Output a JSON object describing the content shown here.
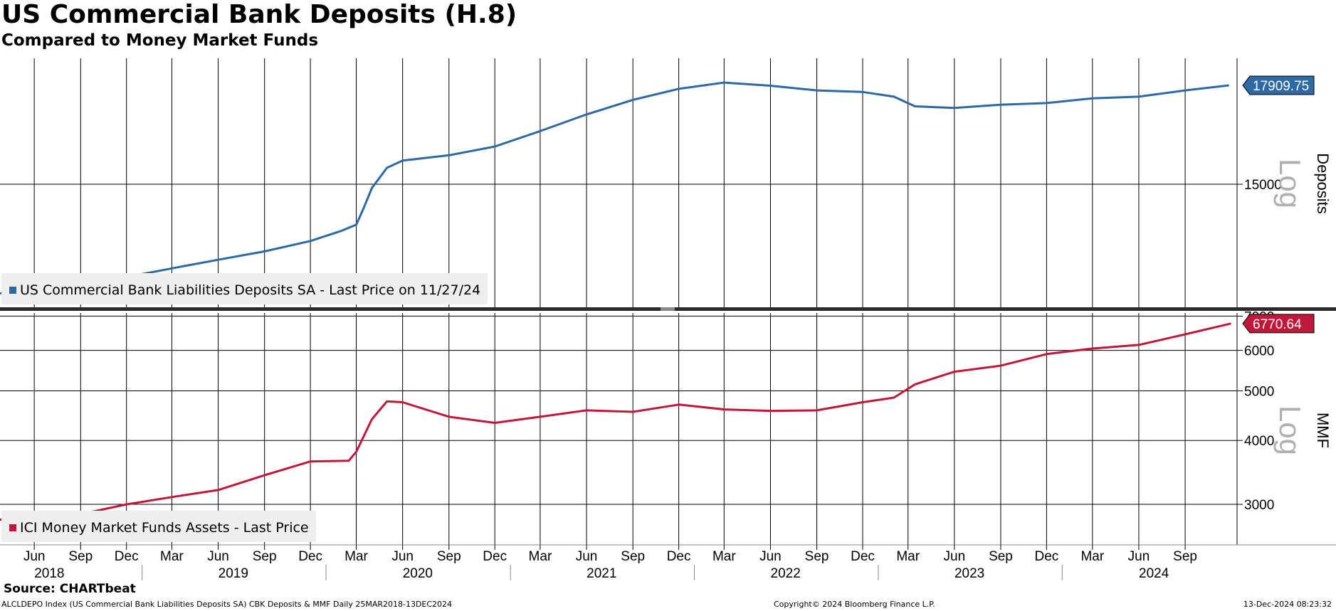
{
  "header": {
    "title": "US Commercial Bank Deposits (H.8)",
    "subtitle": "Compared to Money Market Funds"
  },
  "footer": {
    "source": "Source: CHARTbeat",
    "description": "ALCLDEPO Index (US Commercial Bank Liabilities Deposits SA) CBK Deposits & MMF  Daily 25MAR2018-13DEC2024",
    "copyright": "Copyright© 2024 Bloomberg Finance L.P.",
    "timestamp": "13-Dec-2024 08:23:32"
  },
  "colors": {
    "deposits": "#2d6aa3",
    "mmf": "#c0183a",
    "grid": "#000000",
    "legend_bg": "#eeeeee",
    "log_text": "#b0b0b0"
  },
  "chart_data": [
    {
      "type": "line",
      "panel": "top",
      "scale": "log",
      "ylabel": "Deposits",
      "scale_label": "Log",
      "ylim": [
        12000,
        18800
      ],
      "yticks": [
        15000
      ],
      "grid": true,
      "legend_position": "bottom-left",
      "last_value_label": "17909.75",
      "series": [
        {
          "name": "US Commercial Bank Liabilities Deposits SA - Last Price on 11/27/24",
          "color": "#2d6aa3",
          "points": [
            [
              "2018-03-25",
              12330
            ],
            [
              "2018-06-01",
              12450
            ],
            [
              "2018-09-01",
              12550
            ],
            [
              "2018-12-01",
              12700
            ],
            [
              "2019-03-01",
              12900
            ],
            [
              "2019-06-01",
              13100
            ],
            [
              "2019-09-01",
              13300
            ],
            [
              "2019-12-01",
              13550
            ],
            [
              "2020-02-01",
              13800
            ],
            [
              "2020-03-01",
              13950
            ],
            [
              "2020-03-15",
              14350
            ],
            [
              "2020-04-01",
              14900
            ],
            [
              "2020-05-01",
              15450
            ],
            [
              "2020-06-01",
              15650
            ],
            [
              "2020-09-01",
              15800
            ],
            [
              "2020-12-01",
              16050
            ],
            [
              "2021-03-01",
              16500
            ],
            [
              "2021-06-01",
              17000
            ],
            [
              "2021-09-01",
              17450
            ],
            [
              "2021-12-01",
              17800
            ],
            [
              "2022-03-01",
              18000
            ],
            [
              "2022-06-01",
              17900
            ],
            [
              "2022-09-01",
              17750
            ],
            [
              "2022-12-01",
              17700
            ],
            [
              "2023-02-01",
              17550
            ],
            [
              "2023-03-15",
              17250
            ],
            [
              "2023-06-01",
              17200
            ],
            [
              "2023-09-01",
              17300
            ],
            [
              "2023-12-01",
              17350
            ],
            [
              "2024-03-01",
              17500
            ],
            [
              "2024-06-01",
              17550
            ],
            [
              "2024-09-01",
              17750
            ],
            [
              "2024-11-27",
              17909.75
            ]
          ]
        }
      ]
    },
    {
      "type": "line",
      "panel": "bottom",
      "scale": "log",
      "ylabel": "MMF",
      "scale_label": "Log",
      "ylim": [
        2500,
        7100
      ],
      "yticks": [
        3000,
        4000,
        5000,
        6000,
        7000
      ],
      "grid": true,
      "legend_position": "bottom-left",
      "last_value_label": "6770.64",
      "series": [
        {
          "name": "ICI Money Market Funds Assets - Last Price",
          "color": "#c0183a",
          "points": [
            [
              "2018-03-25",
              2800
            ],
            [
              "2018-06-01",
              2820
            ],
            [
              "2018-09-01",
              2870
            ],
            [
              "2018-12-01",
              3000
            ],
            [
              "2019-03-01",
              3100
            ],
            [
              "2019-06-01",
              3200
            ],
            [
              "2019-09-01",
              3420
            ],
            [
              "2019-12-01",
              3640
            ],
            [
              "2020-02-15",
              3650
            ],
            [
              "2020-03-01",
              3800
            ],
            [
              "2020-04-01",
              4400
            ],
            [
              "2020-05-01",
              4770
            ],
            [
              "2020-06-01",
              4750
            ],
            [
              "2020-09-01",
              4450
            ],
            [
              "2020-12-01",
              4330
            ],
            [
              "2021-03-01",
              4450
            ],
            [
              "2021-06-01",
              4580
            ],
            [
              "2021-09-01",
              4550
            ],
            [
              "2021-12-01",
              4700
            ],
            [
              "2022-03-01",
              4600
            ],
            [
              "2022-06-01",
              4570
            ],
            [
              "2022-09-01",
              4580
            ],
            [
              "2022-12-01",
              4750
            ],
            [
              "2023-02-01",
              4850
            ],
            [
              "2023-03-15",
              5150
            ],
            [
              "2023-06-01",
              5450
            ],
            [
              "2023-09-01",
              5600
            ],
            [
              "2023-12-01",
              5900
            ],
            [
              "2024-03-01",
              6050
            ],
            [
              "2024-06-01",
              6150
            ],
            [
              "2024-09-01",
              6450
            ],
            [
              "2024-12-01",
              6770.64
            ]
          ]
        }
      ]
    }
  ],
  "x_axis": {
    "range": [
      "2018-03-25",
      "2024-12-13"
    ],
    "month_ticks": [
      {
        "label": "Jun",
        "date": "2018-06-01"
      },
      {
        "label": "Sep",
        "date": "2018-09-01"
      },
      {
        "label": "Dec",
        "date": "2018-12-01"
      },
      {
        "label": "Mar",
        "date": "2019-03-01"
      },
      {
        "label": "Jun",
        "date": "2019-06-01"
      },
      {
        "label": "Sep",
        "date": "2019-09-01"
      },
      {
        "label": "Dec",
        "date": "2019-12-01"
      },
      {
        "label": "Mar",
        "date": "2020-03-01"
      },
      {
        "label": "Jun",
        "date": "2020-06-01"
      },
      {
        "label": "Sep",
        "date": "2020-09-01"
      },
      {
        "label": "Dec",
        "date": "2020-12-01"
      },
      {
        "label": "Mar",
        "date": "2021-03-01"
      },
      {
        "label": "Jun",
        "date": "2021-06-01"
      },
      {
        "label": "Sep",
        "date": "2021-09-01"
      },
      {
        "label": "Dec",
        "date": "2021-12-01"
      },
      {
        "label": "Mar",
        "date": "2022-03-01"
      },
      {
        "label": "Jun",
        "date": "2022-06-01"
      },
      {
        "label": "Sep",
        "date": "2022-09-01"
      },
      {
        "label": "Dec",
        "date": "2022-12-01"
      },
      {
        "label": "Mar",
        "date": "2023-03-01"
      },
      {
        "label": "Jun",
        "date": "2023-06-01"
      },
      {
        "label": "Sep",
        "date": "2023-09-01"
      },
      {
        "label": "Dec",
        "date": "2023-12-01"
      },
      {
        "label": "Mar",
        "date": "2024-03-01"
      },
      {
        "label": "Jun",
        "date": "2024-06-01"
      },
      {
        "label": "Sep",
        "date": "2024-09-01"
      }
    ],
    "years": [
      {
        "label": "2018",
        "date": "2018-07-01"
      },
      {
        "label": "2019",
        "date": "2019-07-01"
      },
      {
        "label": "2020",
        "date": "2020-07-01"
      },
      {
        "label": "2021",
        "date": "2021-07-01"
      },
      {
        "label": "2022",
        "date": "2022-07-01"
      },
      {
        "label": "2023",
        "date": "2023-07-01"
      },
      {
        "label": "2024",
        "date": "2024-07-01"
      }
    ],
    "year_separators": [
      "2019-01-01",
      "2020-01-01",
      "2021-01-01",
      "2022-01-01",
      "2023-01-01",
      "2024-01-01"
    ]
  }
}
